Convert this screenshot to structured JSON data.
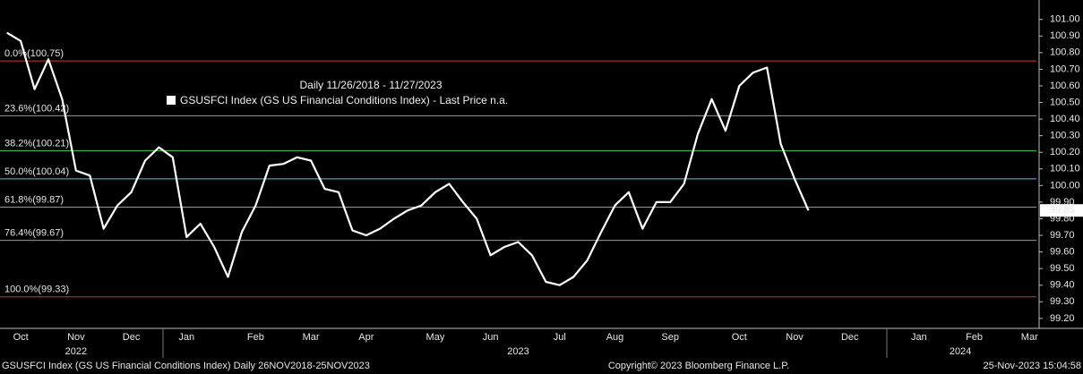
{
  "chart_data": {
    "type": "line",
    "subtitle": "Daily 11/26/2018 - 11/27/2023",
    "categories": [
      null,
      "Oct",
      null,
      null,
      null,
      "Nov",
      null,
      null,
      null,
      "Dec",
      null,
      null,
      null,
      "Jan",
      null,
      null,
      null,
      null,
      "Feb",
      null,
      null,
      null,
      "Mar",
      null,
      null,
      null,
      "Apr",
      null,
      null,
      null,
      null,
      "May",
      null,
      null,
      null,
      "Jun",
      null,
      null,
      null,
      null,
      "Jul",
      null,
      null,
      null,
      "Aug",
      null,
      null,
      null,
      "Sep",
      null,
      null,
      null,
      null,
      "Oct",
      null,
      null,
      null,
      "Nov",
      null,
      null,
      null,
      "Dec",
      null,
      null,
      null,
      null,
      "Jan",
      null,
      null,
      null,
      "Feb",
      null,
      null,
      null,
      "Mar"
    ],
    "years": [
      null,
      null,
      null,
      null,
      null,
      "2022",
      null,
      null,
      null,
      null,
      null,
      null,
      null,
      null,
      null,
      null,
      null,
      null,
      null,
      null,
      null,
      null,
      null,
      null,
      null,
      null,
      null,
      null,
      null,
      null,
      null,
      null,
      null,
      null,
      null,
      null,
      null,
      "2023",
      null,
      null,
      null,
      null,
      null,
      null,
      null,
      null,
      null,
      null,
      null,
      null,
      null,
      null,
      null,
      null,
      null,
      null,
      null,
      null,
      null,
      null,
      null,
      null,
      null,
      null,
      null,
      null,
      null,
      null,
      null,
      "2024",
      null,
      null,
      null,
      null,
      null
    ],
    "series": [
      {
        "name": "GSUSFCI Index (GS US Financial Conditions Index) - Last Price n.a.",
        "color": "#ffffff",
        "values": [
          100.92,
          100.87,
          100.58,
          100.76,
          100.52,
          100.09,
          100.06,
          99.74,
          99.88,
          99.96,
          100.15,
          100.23,
          100.17,
          99.69,
          99.77,
          99.63,
          99.45,
          99.72,
          99.88,
          100.12,
          100.13,
          100.17,
          100.15,
          99.98,
          99.96,
          99.73,
          99.7,
          99.74,
          99.8,
          99.85,
          99.88,
          99.96,
          100.01,
          99.9,
          99.8,
          99.58,
          99.63,
          99.66,
          99.58,
          99.42,
          99.4,
          99.45,
          99.55,
          99.72,
          99.88,
          99.96,
          99.74,
          99.9,
          99.9,
          100.01,
          100.31,
          100.52,
          100.33,
          100.6,
          100.68,
          100.71,
          100.25,
          100.04,
          99.85,
          null,
          null,
          null,
          null,
          null,
          null,
          null,
          null,
          null,
          null,
          null,
          null,
          null,
          null,
          null,
          null
        ]
      }
    ],
    "levels": [
      {
        "label": "0.0%(100.75)",
        "value": 100.75,
        "color": "#d0323c"
      },
      {
        "label": "23.6%(100.42)",
        "value": 100.42,
        "color": "#9a9a9a"
      },
      {
        "label": "38.2%(100.21)",
        "value": 100.21,
        "color": "#3fd24c"
      },
      {
        "label": "50.0%(100.04)",
        "value": 100.04,
        "color": "#4ec8e0"
      },
      {
        "label": "61.8%(99.87)",
        "value": 99.87,
        "color": "#3fd24c"
      },
      {
        "label": "76.4%(99.67)",
        "value": 99.67,
        "color": "#9a9a9a"
      },
      {
        "label": "100.0%(99.33)",
        "value": 99.33,
        "color": "#d0323c"
      }
    ],
    "ylim": [
      99.14,
      101.09
    ],
    "yticks": [
      {
        "value": 99.2,
        "label": "99.20"
      },
      {
        "value": 99.3,
        "label": "99.30"
      },
      {
        "value": 99.4,
        "label": "99.40"
      },
      {
        "value": 99.5,
        "label": "99.50"
      },
      {
        "value": 99.6,
        "label": "99.60"
      },
      {
        "value": 99.7,
        "label": "99.70"
      },
      {
        "value": 99.8,
        "label": "99.80"
      },
      {
        "value": 99.9,
        "label": "99.90"
      },
      {
        "value": 100.0,
        "label": "100.00"
      },
      {
        "value": 100.1,
        "label": "100.10"
      },
      {
        "value": 100.2,
        "label": "100.20"
      },
      {
        "value": 100.3,
        "label": "100.30"
      },
      {
        "value": 100.4,
        "label": "100.40"
      },
      {
        "value": 100.5,
        "label": "100.50"
      },
      {
        "value": 100.6,
        "label": "100.60"
      },
      {
        "value": 100.7,
        "label": "100.70"
      },
      {
        "value": 100.8,
        "label": "100.80"
      },
      {
        "value": 100.9,
        "label": "100.90"
      },
      {
        "value": 101.0,
        "label": "101.00"
      }
    ],
    "grid": false
  },
  "footer": {
    "left": "GSUSFCI Index (GS US Financial Conditions Index)  Daily 26NOV2018-25NOV2023",
    "center": "Copyright© 2023 Bloomberg Finance L.P.",
    "right": "25-Nov-2023 15:04:58"
  }
}
